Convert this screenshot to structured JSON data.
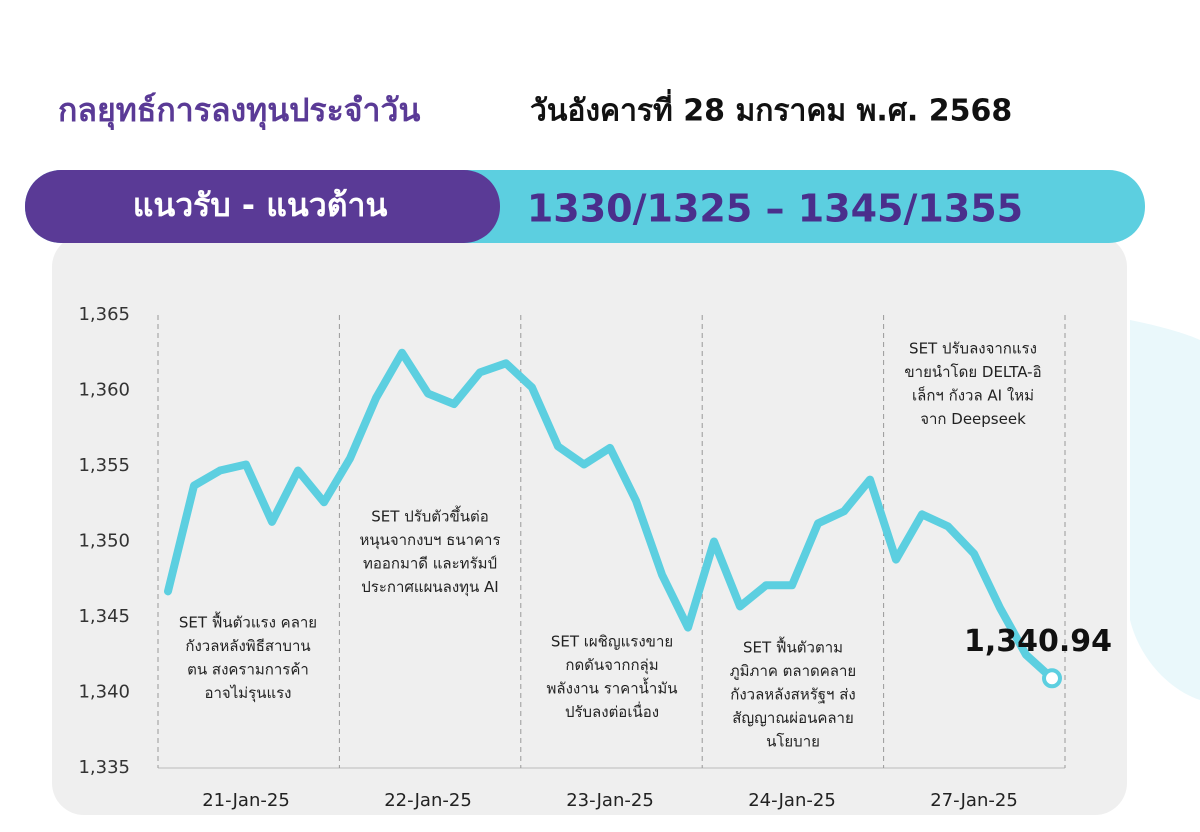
{
  "header": {
    "title": "กลยุทธ์การลงทุนประจำวัน",
    "date": "วันอังคารที่ 28 มกราคม พ.ศ. 2568",
    "range_label": "แนวรับ - แนวต้าน",
    "range_value": "1330/1325 – 1345/1355"
  },
  "chart_data": {
    "type": "line",
    "categories": [
      null,
      null,
      null,
      "21-Jan-25",
      null,
      null,
      null,
      null,
      null,
      null,
      "22-Jan-25",
      null,
      null,
      null,
      null,
      null,
      null,
      "23-Jan-25",
      null,
      null,
      null,
      null,
      null,
      null,
      "24-Jan-25",
      null,
      null,
      null,
      null,
      null,
      null,
      "27-Jan-25",
      null,
      null,
      null
    ],
    "series": [
      {
        "color": "#5ccfe0",
        "values": [
          1346.7,
          1353.7,
          1354.7,
          1355.1,
          1351.3,
          1354.7,
          1352.6,
          1355.5,
          1359.5,
          1362.5,
          1359.8,
          1359.1,
          1361.2,
          1361.8,
          1360.2,
          1356.3,
          1355.1,
          1356.2,
          1352.7,
          1347.8,
          1344.3,
          1350.0,
          1345.7,
          1347.1,
          1347.1,
          1351.2,
          1352.0,
          1354.1,
          1348.8,
          1351.8,
          1351.0,
          1349.2,
          1345.6,
          1342.5,
          1340.94
        ],
        "value_labels": [
          null,
          null,
          null,
          null,
          null,
          null,
          null,
          null,
          null,
          null,
          null,
          null,
          null,
          null,
          null,
          null,
          null,
          null,
          null,
          null,
          null,
          null,
          null,
          null,
          null,
          null,
          null,
          null,
          null,
          null,
          null,
          null,
          null,
          null,
          "1,340.94"
        ]
      }
    ],
    "ylim": [
      1335,
      1365
    ],
    "yticks": [
      {
        "value": 1335,
        "label": "1,335"
      },
      {
        "value": 1340,
        "label": "1,340"
      },
      {
        "value": 1345,
        "label": "1,345"
      },
      {
        "value": 1350,
        "label": "1,350"
      },
      {
        "value": 1355,
        "label": "1,355"
      },
      {
        "value": 1360,
        "label": "1,360"
      },
      {
        "value": 1365,
        "label": "1,365"
      }
    ],
    "annotations": [
      {
        "lines": [
          "SET ฟื้นตัวแรง คลาย",
          "กังวลหลังพิธีสาบาน",
          "ตน สงครามการค้า",
          "อาจไม่รุนแรง"
        ]
      },
      {
        "lines": [
          "SET ปรับตัวขึ้นต่อ",
          "หนุนจากงบฯ ธนาคาร",
          "ทออกมาดี และทรัมป์",
          "ประกาศแผนลงทุน AI"
        ]
      },
      {
        "lines": [
          "SET เผชิญแรงขาย",
          "กดดันจากกลุ่ม",
          "พลังงาน ราคาน้ำมัน",
          "ปรับลงต่อเนื่อง"
        ]
      },
      {
        "lines": [
          "SET ฟื้นตัวตาม",
          "ภูมิภาค ตลาดคลาย",
          "กังวลหลังสหรัฐฯ ส่ง",
          "สัญญาณผ่อนคลาย",
          "นโยบาย"
        ]
      },
      {
        "lines": [
          "SET ปรับลงจากแรง",
          "ขายนำโดย DELTA-อิ",
          "เล็กฯ กังวล AI ใหม่",
          "จาก Deepseek"
        ]
      }
    ]
  }
}
